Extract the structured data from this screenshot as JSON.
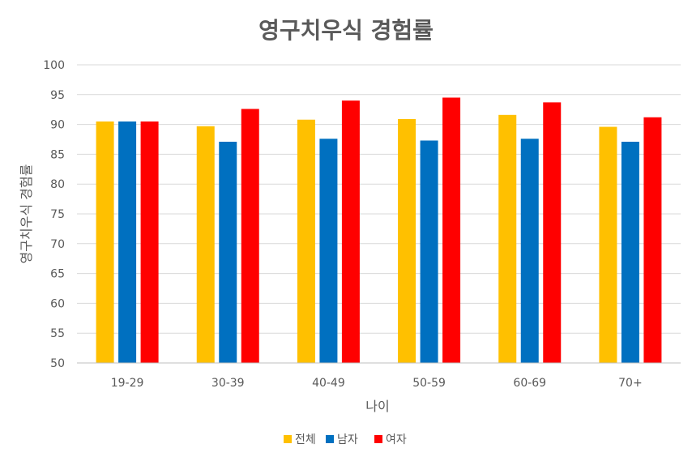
{
  "colors": {
    "series": [
      "#FFC000",
      "#0070C0",
      "#FF0000"
    ],
    "grid": "#d9d9d9",
    "text": "#595959"
  },
  "chart_data": {
    "type": "bar",
    "title": "영구치우식 경험률",
    "xlabel": "나이",
    "ylabel": "영구치우식 경험률",
    "categories": [
      "19-29",
      "30-39",
      "40-49",
      "50-59",
      "60-69",
      "70+"
    ],
    "series": [
      {
        "name": "전체",
        "values": [
          90.5,
          89.7,
          90.8,
          90.9,
          91.6,
          89.6
        ]
      },
      {
        "name": "남자",
        "values": [
          90.5,
          87.1,
          87.6,
          87.3,
          87.6,
          87.1
        ]
      },
      {
        "name": "여자",
        "values": [
          90.5,
          92.6,
          94.0,
          94.5,
          93.7,
          91.2
        ]
      }
    ],
    "ylim": [
      50,
      100
    ],
    "yticks": [
      "50",
      "55",
      "60",
      "65",
      "70",
      "75",
      "80",
      "85",
      "90",
      "95",
      "100"
    ],
    "grid": true,
    "legend_position": "bottom"
  }
}
